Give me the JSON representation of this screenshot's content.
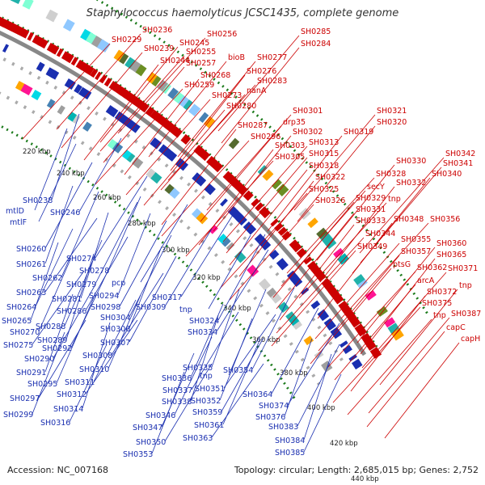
{
  "title": "Staphylococcus haemolyticus JCSC1435, complete genome",
  "footer": {
    "accession": "Accession: NC_007168",
    "summary": "Topology: circular; Length: 2,685,015 bp; Genes: 2,752"
  },
  "kbp_labels": [
    "220 kbp",
    "240 kbp",
    "260 kbp",
    "280 kbp",
    "300 kbp",
    "320 kbp",
    "340 kbp",
    "360 kbp",
    "380 kbp",
    "400 kbp",
    "420 kbp",
    "440 kbp"
  ],
  "forward_genes": [
    "SH0229",
    "SH0236",
    "SH0239",
    "SH0245",
    "SH0244",
    "SH0256",
    "SH0255",
    "SH0257",
    "bioB",
    "SH0268",
    "SH0259",
    "SH0273",
    "SH0280",
    "SH0277",
    "SH0276",
    "SH0283",
    "nanA",
    "SH0285",
    "SH0284",
    "SH0287",
    "SH0296",
    "SH0301",
    "drp35",
    "SH0302",
    "SH0303",
    "SH0305",
    "SH0313",
    "SH0315",
    "SH0318",
    "SH0322",
    "SH0325",
    "SH0326",
    "SH0321",
    "SH0320",
    "SH0319",
    "SH0328",
    "secY",
    "SH0329",
    "SH0331",
    "SH0333",
    "SH0344",
    "SH0349",
    "ptsG",
    "SH0330",
    "SH0332",
    "tnp",
    "SH0342",
    "SH0341",
    "SH0340",
    "SH0348",
    "SH0356",
    "SH0355",
    "SH0357",
    "SH0360",
    "SH0365",
    "SH0362",
    "SH0371",
    "arcA",
    "tnp",
    "SH0372",
    "SH0375",
    "tnp",
    "SH0387",
    "capC",
    "capH"
  ],
  "reverse_genes": [
    "SH0238",
    "mtlD",
    "mtlF",
    "SH0246",
    "SH0260",
    "SH0274",
    "SH0261",
    "SH0278",
    "SH0262",
    "SH0279",
    "pcp",
    "SH0263",
    "SH0281",
    "SH0294",
    "SH0264",
    "SH0286",
    "SH0298",
    "SH0317",
    "SH0265",
    "SH0270",
    "SH0288",
    "SH0304",
    "SH0309",
    "SH0275",
    "SH0289",
    "SH0306",
    "SH0292",
    "SH0290",
    "SH0307",
    "SH0308",
    "SH0291",
    "SH0310",
    "SH0295",
    "SH0311",
    "SH0297",
    "SH0312",
    "SH0314",
    "SH0299",
    "SH0316",
    "tnp",
    "SH0324",
    "SH0334",
    "SH0335",
    "SH0336",
    "tnp",
    "SH0354",
    "SH0337",
    "SH0351",
    "SH0338",
    "SH0352",
    "SH0346",
    "SH0359",
    "SH0364",
    "SH0374",
    "SH0376",
    "SH0347",
    "SH0361",
    "SH0383",
    "SH0350",
    "SH0363",
    "SH0384",
    "SH0353",
    "SH0385"
  ],
  "colors": {
    "forward": "#cc0000",
    "reverse": "#1a2fb0",
    "backbone": "#888888",
    "gc_ticks": "#1a7a1a"
  }
}
